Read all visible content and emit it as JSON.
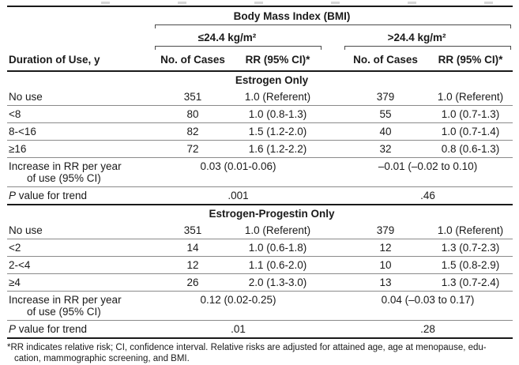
{
  "page": {
    "background": "#ffffff",
    "text_color": "#1a1a1a",
    "thick_rule_color": "#1a1a1a",
    "thin_rule_color": "#8a8a8a"
  },
  "table": {
    "spanner": "Body Mass Index (BMI)",
    "row_header": "Duration of Use, y",
    "group_headers": [
      "≤24.4 kg/m²",
      ">24.4 kg/m²"
    ],
    "col_headers": [
      "No. of Cases",
      "RR (95% CI)*",
      "No. of Cases",
      "RR (95% CI)*"
    ],
    "sections": [
      {
        "title": "Estrogen Only",
        "rows": [
          {
            "label": "No use",
            "cells": [
              "351",
              "1.0 (Referent)",
              "379",
              "1.0 (Referent)"
            ]
          },
          {
            "label": "<8",
            "cells": [
              "80",
              "1.0 (0.8-1.3)",
              "55",
              "1.0 (0.7-1.3)"
            ]
          },
          {
            "label": "8-<16",
            "cells": [
              "82",
              "1.5 (1.2-2.0)",
              "40",
              "1.0 (0.7-1.4)"
            ]
          },
          {
            "label": "≥16",
            "cells": [
              "72",
              "1.6 (1.2-2.2)",
              "32",
              "0.8 (0.6-1.3)"
            ]
          }
        ],
        "increase": {
          "label_line1": "Increase in RR per year",
          "label_line2": "of use (95% CI)",
          "values": [
            "0.03 (0.01-0.06)",
            "–0.01 (–0.02 to 0.10)"
          ]
        },
        "p_row": {
          "label_italic": "P",
          "label_rest": " value for trend",
          "values": [
            ".001",
            ".46"
          ]
        }
      },
      {
        "title": "Estrogen-Progestin Only",
        "rows": [
          {
            "label": "No use",
            "cells": [
              "351",
              "1.0 (Referent)",
              "379",
              "1.0 (Referent)"
            ]
          },
          {
            "label": "<2",
            "cells": [
              "14",
              "1.0 (0.6-1.8)",
              "12",
              "1.3 (0.7-2.3)"
            ]
          },
          {
            "label": "2-<4",
            "cells": [
              "12",
              "1.1 (0.6-2.0)",
              "10",
              "1.5 (0.8-2.9)"
            ]
          },
          {
            "label": "≥4",
            "cells": [
              "26",
              "2.0 (1.3-3.0)",
              "13",
              "1.3 (0.7-2.4)"
            ]
          }
        ],
        "increase": {
          "label_line1": "Increase in RR per year",
          "label_line2": "of use (95% CI)",
          "values": [
            "0.12 (0.02-0.25)",
            "0.04 (–0.03 to 0.17)"
          ]
        },
        "p_row": {
          "label_italic": "P",
          "label_rest": " value for trend",
          "values": [
            ".01",
            ".28"
          ]
        }
      }
    ],
    "footnote": {
      "line1": "*RR indicates relative risk; CI, confidence interval. Relative risks are adjusted for attained age, age at menopause, edu-",
      "line2": "cation, mammographic screening, and BMI."
    }
  }
}
